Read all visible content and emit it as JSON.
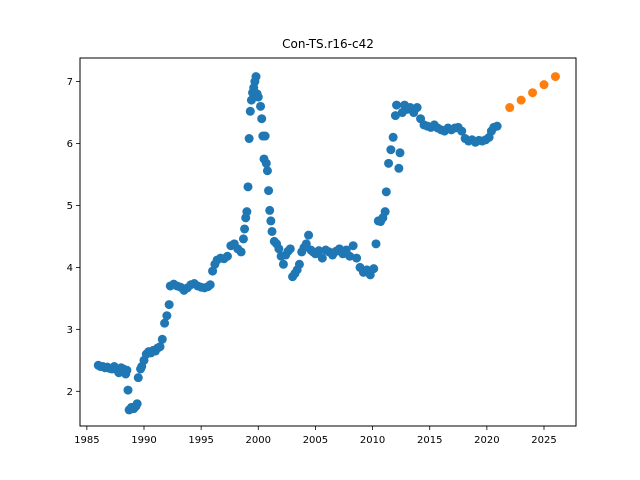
{
  "chart_data": {
    "type": "scatter",
    "title": "Con-TS.r16-c42",
    "xlabel": "",
    "ylabel": "",
    "xlim": [
      1984.4,
      2027.8
    ],
    "ylim": [
      1.44,
      7.38
    ],
    "xticks": [
      1985,
      1990,
      1995,
      2000,
      2005,
      2010,
      2015,
      2020,
      2025
    ],
    "yticks": [
      2,
      3,
      4,
      5,
      6,
      7
    ],
    "grid": false,
    "legend": "none",
    "colors": {
      "history": "#1f77b4",
      "forecast": "#ff7f0e"
    },
    "series": [
      {
        "points": [
          [
            1986.0,
            2.42
          ],
          [
            1986.2,
            2.4
          ],
          [
            1986.4,
            2.4
          ],
          [
            1986.6,
            2.38
          ],
          [
            1986.8,
            2.39
          ],
          [
            1987.0,
            2.37
          ],
          [
            1987.2,
            2.36
          ],
          [
            1987.4,
            2.4
          ],
          [
            1987.6,
            2.35
          ],
          [
            1987.8,
            2.3
          ],
          [
            1988.0,
            2.38
          ],
          [
            1988.2,
            2.36
          ],
          [
            1988.4,
            2.28
          ],
          [
            1988.5,
            2.34
          ],
          [
            1988.6,
            2.02
          ],
          [
            1988.7,
            1.7
          ],
          [
            1988.9,
            1.74
          ],
          [
            1989.1,
            1.72
          ],
          [
            1989.3,
            1.76
          ],
          [
            1989.4,
            1.8
          ],
          [
            1989.5,
            2.22
          ],
          [
            1989.7,
            2.36
          ],
          [
            1989.8,
            2.4
          ],
          [
            1990.0,
            2.5
          ],
          [
            1990.2,
            2.6
          ],
          [
            1990.4,
            2.64
          ],
          [
            1990.6,
            2.62
          ],
          [
            1990.8,
            2.66
          ],
          [
            1991.0,
            2.65
          ],
          [
            1991.2,
            2.7
          ],
          [
            1991.4,
            2.72
          ],
          [
            1991.6,
            2.84
          ],
          [
            1991.8,
            3.1
          ],
          [
            1992.0,
            3.22
          ],
          [
            1992.2,
            3.4
          ],
          [
            1992.3,
            3.7
          ],
          [
            1992.6,
            3.73
          ],
          [
            1992.9,
            3.7
          ],
          [
            1993.2,
            3.68
          ],
          [
            1993.5,
            3.63
          ],
          [
            1993.8,
            3.67
          ],
          [
            1994.1,
            3.72
          ],
          [
            1994.4,
            3.74
          ],
          [
            1994.7,
            3.7
          ],
          [
            1995.0,
            3.68
          ],
          [
            1995.3,
            3.67
          ],
          [
            1995.6,
            3.69
          ],
          [
            1995.8,
            3.72
          ],
          [
            1996.0,
            3.94
          ],
          [
            1996.2,
            4.05
          ],
          [
            1996.4,
            4.12
          ],
          [
            1996.7,
            4.15
          ],
          [
            1997.0,
            4.14
          ],
          [
            1997.3,
            4.18
          ],
          [
            1997.6,
            4.35
          ],
          [
            1997.9,
            4.38
          ],
          [
            1998.2,
            4.3
          ],
          [
            1998.5,
            4.25
          ],
          [
            1998.7,
            4.46
          ],
          [
            1998.8,
            4.62
          ],
          [
            1998.9,
            4.8
          ],
          [
            1999.0,
            4.9
          ],
          [
            1999.1,
            5.3
          ],
          [
            1999.2,
            6.08
          ],
          [
            1999.3,
            6.52
          ],
          [
            1999.4,
            6.7
          ],
          [
            1999.5,
            6.82
          ],
          [
            1999.6,
            6.9
          ],
          [
            1999.7,
            7.0
          ],
          [
            1999.8,
            7.08
          ],
          [
            1999.9,
            6.8
          ],
          [
            2000.0,
            6.75
          ],
          [
            2000.2,
            6.6
          ],
          [
            2000.3,
            6.4
          ],
          [
            2000.4,
            6.12
          ],
          [
            2000.5,
            5.75
          ],
          [
            2000.6,
            6.12
          ],
          [
            2000.7,
            5.68
          ],
          [
            2000.8,
            5.56
          ],
          [
            2000.9,
            5.24
          ],
          [
            2001.0,
            4.92
          ],
          [
            2001.1,
            4.75
          ],
          [
            2001.2,
            4.58
          ],
          [
            2001.4,
            4.42
          ],
          [
            2001.6,
            4.38
          ],
          [
            2001.8,
            4.3
          ],
          [
            2002.0,
            4.18
          ],
          [
            2002.2,
            4.05
          ],
          [
            2002.4,
            4.2
          ],
          [
            2002.6,
            4.26
          ],
          [
            2002.8,
            4.3
          ],
          [
            2003.0,
            3.85
          ],
          [
            2003.2,
            3.9
          ],
          [
            2003.4,
            3.96
          ],
          [
            2003.6,
            4.05
          ],
          [
            2003.8,
            4.25
          ],
          [
            2004.0,
            4.32
          ],
          [
            2004.2,
            4.38
          ],
          [
            2004.4,
            4.52
          ],
          [
            2004.6,
            4.28
          ],
          [
            2004.8,
            4.25
          ],
          [
            2005.0,
            4.22
          ],
          [
            2005.3,
            4.27
          ],
          [
            2005.6,
            4.15
          ],
          [
            2005.9,
            4.28
          ],
          [
            2006.2,
            4.25
          ],
          [
            2006.5,
            4.2
          ],
          [
            2006.8,
            4.26
          ],
          [
            2007.1,
            4.3
          ],
          [
            2007.4,
            4.22
          ],
          [
            2007.7,
            4.28
          ],
          [
            2008.0,
            4.18
          ],
          [
            2008.3,
            4.35
          ],
          [
            2008.6,
            4.15
          ],
          [
            2008.9,
            4.0
          ],
          [
            2009.2,
            3.92
          ],
          [
            2009.5,
            3.96
          ],
          [
            2009.8,
            3.88
          ],
          [
            2010.1,
            3.98
          ],
          [
            2010.3,
            4.38
          ],
          [
            2010.5,
            4.75
          ],
          [
            2010.7,
            4.74
          ],
          [
            2010.9,
            4.8
          ],
          [
            2011.1,
            4.9
          ],
          [
            2011.2,
            5.22
          ],
          [
            2011.4,
            5.68
          ],
          [
            2011.6,
            5.9
          ],
          [
            2011.8,
            6.1
          ],
          [
            2012.0,
            6.45
          ],
          [
            2012.1,
            6.62
          ],
          [
            2012.3,
            5.6
          ],
          [
            2012.4,
            5.85
          ],
          [
            2012.6,
            6.5
          ],
          [
            2012.8,
            6.62
          ],
          [
            2013.0,
            6.55
          ],
          [
            2013.3,
            6.58
          ],
          [
            2013.6,
            6.5
          ],
          [
            2013.9,
            6.58
          ],
          [
            2014.2,
            6.4
          ],
          [
            2014.5,
            6.3
          ],
          [
            2014.8,
            6.28
          ],
          [
            2015.1,
            6.26
          ],
          [
            2015.4,
            6.3
          ],
          [
            2015.7,
            6.25
          ],
          [
            2016.0,
            6.22
          ],
          [
            2016.3,
            6.2
          ],
          [
            2016.6,
            6.25
          ],
          [
            2016.9,
            6.22
          ],
          [
            2017.2,
            6.25
          ],
          [
            2017.5,
            6.26
          ],
          [
            2017.8,
            6.2
          ],
          [
            2018.1,
            6.08
          ],
          [
            2018.4,
            6.04
          ],
          [
            2018.7,
            6.06
          ],
          [
            2019.0,
            6.02
          ],
          [
            2019.3,
            6.05
          ],
          [
            2019.6,
            6.04
          ],
          [
            2019.9,
            6.06
          ],
          [
            2020.2,
            6.1
          ],
          [
            2020.4,
            6.2
          ],
          [
            2020.6,
            6.26
          ],
          [
            2020.9,
            6.28
          ]
        ]
      },
      {
        "points": [
          [
            2022.0,
            6.58
          ],
          [
            2023.0,
            6.7
          ],
          [
            2024.0,
            6.82
          ],
          [
            2025.0,
            6.95
          ],
          [
            2026.0,
            7.08
          ]
        ]
      }
    ]
  }
}
